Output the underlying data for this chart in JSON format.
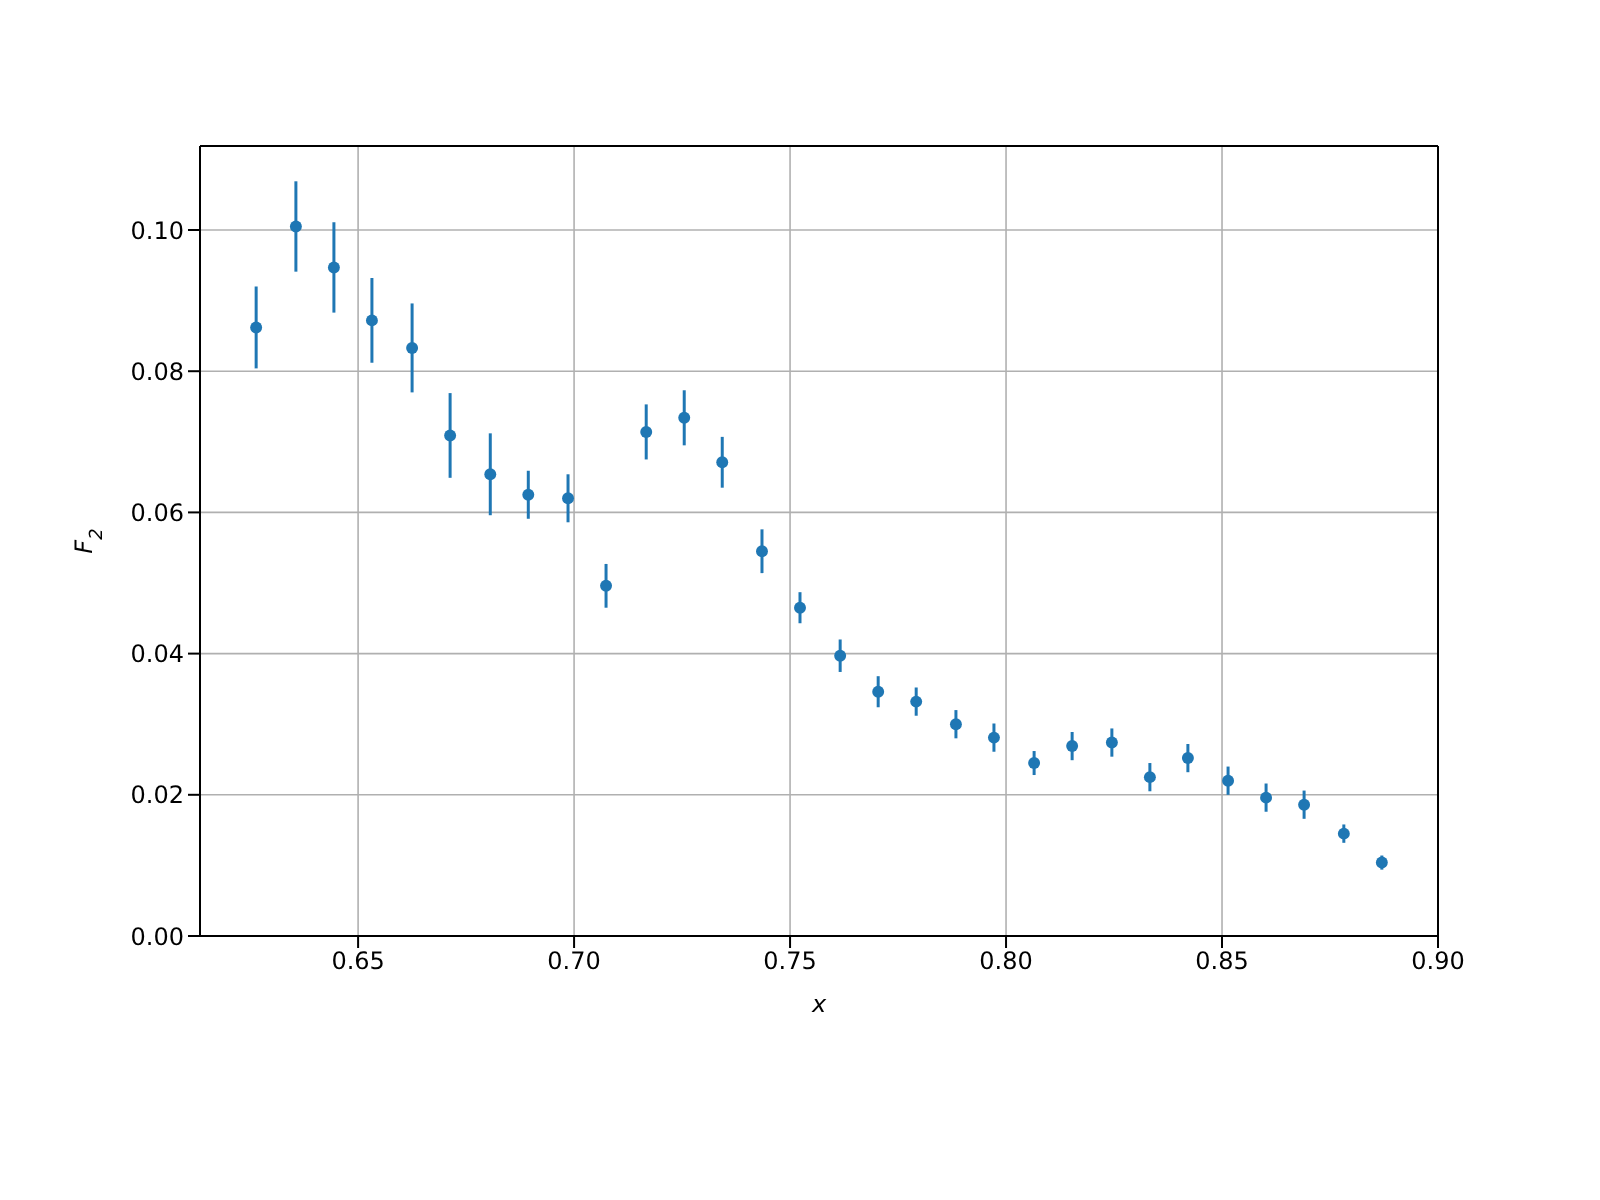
{
  "chart_data": {
    "type": "scatter",
    "xlabel": "x",
    "ylabel": "F$_{2}$",
    "x": [
      0.6264,
      0.6356,
      0.6444,
      0.6532,
      0.6625,
      0.6713,
      0.6806,
      0.6894,
      0.6986,
      0.7074,
      0.7167,
      0.7255,
      0.7343,
      0.7435,
      0.7523,
      0.7616,
      0.7704,
      0.7792,
      0.7884,
      0.7972,
      0.8065,
      0.8153,
      0.8245,
      0.8333,
      0.8421,
      0.8514,
      0.8602,
      0.869,
      0.8782,
      0.887
    ],
    "series": [
      {
        "color": "#1f77b4",
        "values": [
          0.0862,
          0.1005,
          0.0947,
          0.0872,
          0.0833,
          0.0709,
          0.0654,
          0.0625,
          0.062,
          0.0496,
          0.0714,
          0.0734,
          0.0671,
          0.0545,
          0.0465,
          0.0397,
          0.0346,
          0.0332,
          0.03,
          0.0281,
          0.0245,
          0.0269,
          0.0274,
          0.0225,
          0.0252,
          0.022,
          0.0196,
          0.0186,
          0.0145,
          0.0104
        ],
        "errors": [
          0.0058,
          0.0064,
          0.0064,
          0.006,
          0.0063,
          0.006,
          0.0058,
          0.0034,
          0.0034,
          0.0031,
          0.0039,
          0.0039,
          0.0036,
          0.0031,
          0.0022,
          0.0023,
          0.0022,
          0.002,
          0.002,
          0.002,
          0.0017,
          0.002,
          0.002,
          0.002,
          0.002,
          0.002,
          0.002,
          0.002,
          0.0013,
          0.001
        ]
      }
    ],
    "xlim": [
      0.6134,
      0.9
    ],
    "xticks": [
      {
        "value": 0.65,
        "label": "0.65"
      },
      {
        "value": 0.7,
        "label": "0.70"
      },
      {
        "value": 0.75,
        "label": "0.75"
      },
      {
        "value": 0.8,
        "label": "0.80"
      },
      {
        "value": 0.85,
        "label": "0.85"
      },
      {
        "value": 0.9,
        "label": "0.90"
      }
    ],
    "ylim": [
      0,
      0.1119
    ],
    "yticks": [
      {
        "value": 0,
        "label": "0.00"
      },
      {
        "value": 0.02,
        "label": "0.02"
      },
      {
        "value": 0.04,
        "label": "0.04"
      },
      {
        "value": 0.06,
        "label": "0.06"
      },
      {
        "value": 0.08,
        "label": "0.08"
      },
      {
        "value": 0.1,
        "label": "0.10"
      }
    ],
    "grid": true,
    "marker": "circle"
  }
}
